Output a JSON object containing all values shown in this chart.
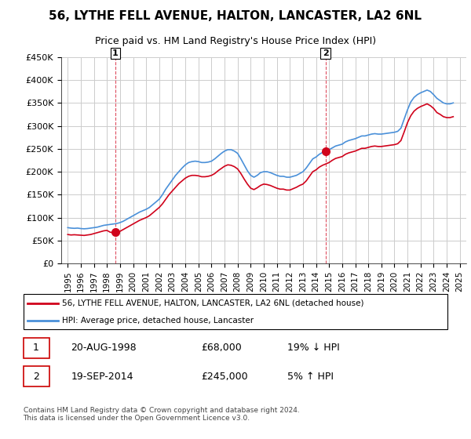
{
  "title": "56, LYTHE FELL AVENUE, HALTON, LANCASTER, LA2 6NL",
  "subtitle": "Price paid vs. HM Land Registry's House Price Index (HPI)",
  "legend_line1": "56, LYTHE FELL AVENUE, HALTON, LANCASTER, LA2 6NL (detached house)",
  "legend_line2": "HPI: Average price, detached house, Lancaster",
  "footer": "Contains HM Land Registry data © Crown copyright and database right 2024.\nThis data is licensed under the Open Government Licence v3.0.",
  "sale1_label": "1",
  "sale1_date": "20-AUG-1998",
  "sale1_price": "£68,000",
  "sale1_hpi": "19% ↓ HPI",
  "sale2_label": "2",
  "sale2_date": "19-SEP-2014",
  "sale2_price": "£245,000",
  "sale2_hpi": "5% ↑ HPI",
  "sale1_x": 1998.63,
  "sale1_y": 68000,
  "sale2_x": 2014.72,
  "sale2_y": 245000,
  "ylim": [
    0,
    450000
  ],
  "yticks": [
    0,
    50000,
    100000,
    150000,
    200000,
    250000,
    300000,
    350000,
    400000,
    450000
  ],
  "ytick_labels": [
    "£0",
    "£50K",
    "£100K",
    "£150K",
    "£200K",
    "£250K",
    "£300K",
    "£350K",
    "£400K",
    "£450K"
  ],
  "xlim_start": 1994.5,
  "xlim_end": 2025.5,
  "line_color_red": "#d0021b",
  "line_color_blue": "#4a90d9",
  "background_color": "#ffffff",
  "grid_color": "#cccccc",
  "hpi_data_x": [
    1995,
    1995.25,
    1995.5,
    1995.75,
    1996,
    1996.25,
    1996.5,
    1996.75,
    1997,
    1997.25,
    1997.5,
    1997.75,
    1998,
    1998.25,
    1998.5,
    1998.75,
    1999,
    1999.25,
    1999.5,
    1999.75,
    2000,
    2000.25,
    2000.5,
    2000.75,
    2001,
    2001.25,
    2001.5,
    2001.75,
    2002,
    2002.25,
    2002.5,
    2002.75,
    2003,
    2003.25,
    2003.5,
    2003.75,
    2004,
    2004.25,
    2004.5,
    2004.75,
    2005,
    2005.25,
    2005.5,
    2005.75,
    2006,
    2006.25,
    2006.5,
    2006.75,
    2007,
    2007.25,
    2007.5,
    2007.75,
    2008,
    2008.25,
    2008.5,
    2008.75,
    2009,
    2009.25,
    2009.5,
    2009.75,
    2010,
    2010.25,
    2010.5,
    2010.75,
    2011,
    2011.25,
    2011.5,
    2011.75,
    2012,
    2012.25,
    2012.5,
    2012.75,
    2013,
    2013.25,
    2013.5,
    2013.75,
    2014,
    2014.25,
    2014.5,
    2014.75,
    2015,
    2015.25,
    2015.5,
    2015.75,
    2016,
    2016.25,
    2016.5,
    2016.75,
    2017,
    2017.25,
    2017.5,
    2017.75,
    2018,
    2018.25,
    2018.5,
    2018.75,
    2019,
    2019.25,
    2019.5,
    2019.75,
    2020,
    2020.25,
    2020.5,
    2020.75,
    2021,
    2021.25,
    2021.5,
    2021.75,
    2022,
    2022.25,
    2022.5,
    2022.75,
    2023,
    2023.25,
    2023.5,
    2023.75,
    2024,
    2024.25,
    2024.5
  ],
  "hpi_data_y": [
    78000,
    77000,
    76500,
    77000,
    76000,
    75500,
    76000,
    77000,
    78000,
    79000,
    81000,
    83000,
    84000,
    85000,
    86000,
    87000,
    89000,
    92000,
    96000,
    100000,
    104000,
    108000,
    112000,
    115000,
    118000,
    122000,
    128000,
    134000,
    140000,
    150000,
    162000,
    172000,
    182000,
    192000,
    200000,
    208000,
    215000,
    220000,
    222000,
    223000,
    222000,
    220000,
    220000,
    221000,
    223000,
    228000,
    234000,
    240000,
    245000,
    248000,
    248000,
    245000,
    240000,
    228000,
    215000,
    202000,
    192000,
    188000,
    192000,
    198000,
    200000,
    200000,
    198000,
    195000,
    192000,
    190000,
    190000,
    188000,
    188000,
    190000,
    192000,
    196000,
    200000,
    208000,
    218000,
    228000,
    232000,
    238000,
    242000,
    245000,
    248000,
    252000,
    256000,
    258000,
    260000,
    265000,
    268000,
    270000,
    272000,
    275000,
    278000,
    278000,
    280000,
    282000,
    283000,
    282000,
    282000,
    283000,
    284000,
    285000,
    286000,
    288000,
    295000,
    315000,
    335000,
    352000,
    362000,
    368000,
    372000,
    375000,
    378000,
    375000,
    368000,
    360000,
    355000,
    350000,
    348000,
    348000,
    350000
  ],
  "property_data_x": [
    1995,
    1995.25,
    1995.5,
    1995.75,
    1996,
    1996.25,
    1996.5,
    1996.75,
    1997,
    1997.25,
    1997.5,
    1997.75,
    1998,
    1998.25,
    1998.5,
    1998.75,
    1999,
    1999.25,
    1999.5,
    1999.75,
    2000,
    2000.25,
    2000.5,
    2000.75,
    2001,
    2001.25,
    2001.5,
    2001.75,
    2002,
    2002.25,
    2002.5,
    2002.75,
    2003,
    2003.25,
    2003.5,
    2003.75,
    2004,
    2004.25,
    2004.5,
    2004.75,
    2005,
    2005.25,
    2005.5,
    2005.75,
    2006,
    2006.25,
    2006.5,
    2006.75,
    2007,
    2007.25,
    2007.5,
    2007.75,
    2008,
    2008.25,
    2008.5,
    2008.75,
    2009,
    2009.25,
    2009.5,
    2009.75,
    2010,
    2010.25,
    2010.5,
    2010.75,
    2011,
    2011.25,
    2011.5,
    2011.75,
    2012,
    2012.25,
    2012.5,
    2012.75,
    2013,
    2013.25,
    2013.5,
    2013.75,
    2014,
    2014.25,
    2014.5,
    2014.75,
    2015,
    2015.25,
    2015.5,
    2015.75,
    2016,
    2016.25,
    2016.5,
    2016.75,
    2017,
    2017.25,
    2017.5,
    2017.75,
    2018,
    2018.25,
    2018.5,
    2018.75,
    2019,
    2019.25,
    2019.5,
    2019.75,
    2020,
    2020.25,
    2020.5,
    2020.75,
    2021,
    2021.25,
    2021.5,
    2021.75,
    2022,
    2022.25,
    2022.5,
    2022.75,
    2023,
    2023.25,
    2023.5,
    2023.75,
    2024,
    2024.25,
    2024.5
  ],
  "property_data_y": [
    63000,
    62000,
    62500,
    62000,
    61500,
    61000,
    62000,
    63000,
    65000,
    67000,
    69000,
    71000,
    72000,
    68000,
    67000,
    68000,
    70000,
    74000,
    78000,
    82000,
    86000,
    90000,
    94000,
    97000,
    100000,
    104000,
    110000,
    116000,
    122000,
    130000,
    140000,
    150000,
    158000,
    166000,
    174000,
    180000,
    186000,
    190000,
    192000,
    192000,
    191000,
    189000,
    189000,
    190000,
    192000,
    196000,
    202000,
    207000,
    212000,
    215000,
    214000,
    211000,
    206000,
    196000,
    184000,
    173000,
    164000,
    161000,
    165000,
    170000,
    173000,
    172000,
    170000,
    167000,
    164000,
    162000,
    162000,
    160000,
    160000,
    163000,
    166000,
    170000,
    173000,
    180000,
    190000,
    200000,
    204000,
    210000,
    214000,
    217000,
    220000,
    225000,
    229000,
    231000,
    233000,
    238000,
    241000,
    243000,
    245000,
    248000,
    251000,
    251000,
    253000,
    255000,
    256000,
    255000,
    255000,
    256000,
    257000,
    258000,
    259000,
    261000,
    268000,
    287000,
    307000,
    322000,
    332000,
    338000,
    342000,
    345000,
    348000,
    344000,
    338000,
    329000,
    325000,
    320000,
    318000,
    318000,
    320000
  ],
  "xticks": [
    1995,
    1996,
    1997,
    1998,
    1999,
    2000,
    2001,
    2002,
    2003,
    2004,
    2005,
    2006,
    2007,
    2008,
    2009,
    2010,
    2011,
    2012,
    2013,
    2014,
    2015,
    2016,
    2017,
    2018,
    2019,
    2020,
    2021,
    2022,
    2023,
    2024,
    2025
  ]
}
